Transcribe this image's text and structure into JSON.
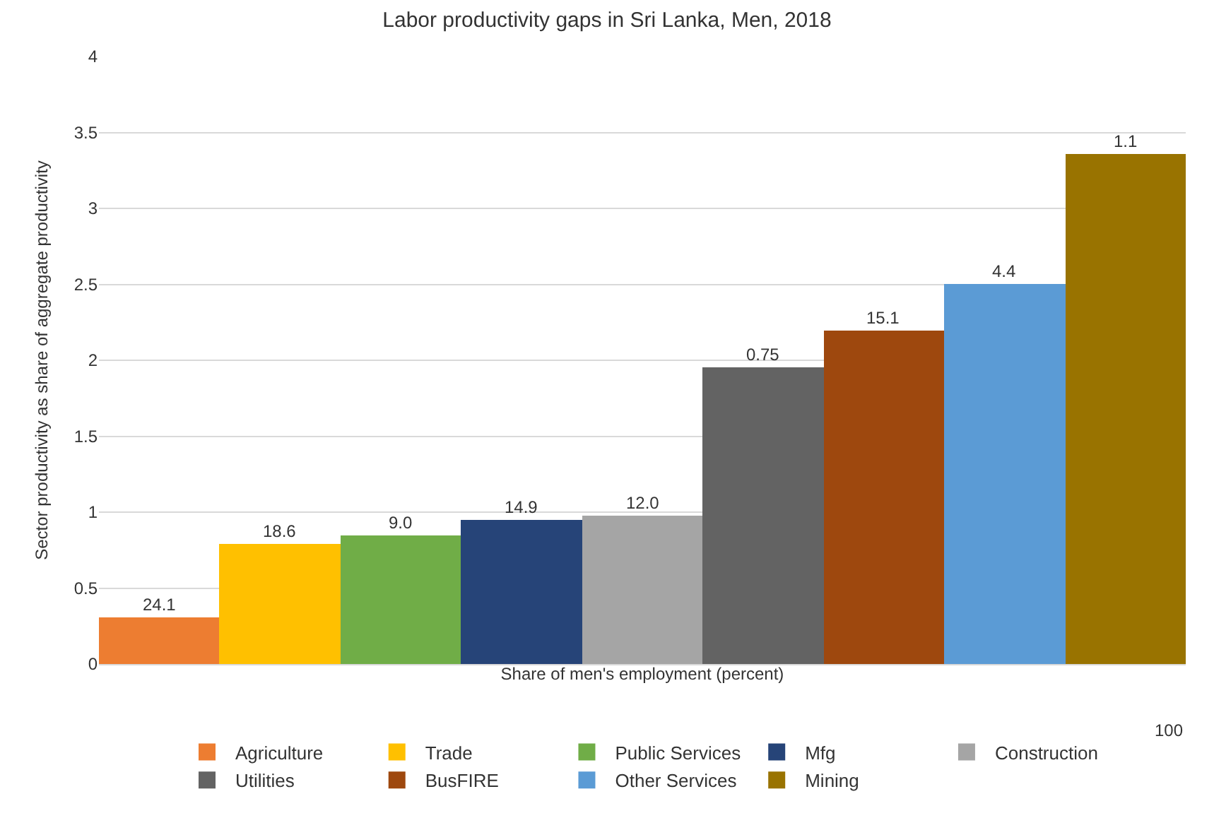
{
  "chart_data": {
    "type": "bar",
    "title": "Labor productivity gaps in Sri Lanka, Men, 2018",
    "xlabel": "Share of men's employment (percent)",
    "ylabel": "Sector productivity as share of aggregate productivity",
    "categories": [
      null,
      null,
      null,
      null,
      null,
      null,
      null,
      null,
      null
    ],
    "ylim": [
      0,
      4
    ],
    "yticks": [
      0,
      0.5,
      1,
      1.5,
      2,
      2.5,
      3,
      3.5,
      4
    ],
    "grid": "y",
    "legend": "bottom",
    "tick_labels": "y",
    "series": [
      {
        "name": "Agriculture",
        "color": "#ed7d31",
        "values": [
          0.31,
          null,
          null,
          null,
          null,
          null,
          null,
          null,
          null
        ]
      },
      {
        "name": "Trade",
        "color": "#ffc000",
        "values": [
          null,
          0.79,
          null,
          null,
          null,
          null,
          null,
          null,
          null
        ]
      },
      {
        "name": "Public Services",
        "color": "#70ad47",
        "values": [
          null,
          null,
          0.85,
          null,
          null,
          null,
          null,
          null,
          null
        ]
      },
      {
        "name": "Mfg",
        "color": "#264478",
        "values": [
          null,
          null,
          null,
          0.95,
          null,
          null,
          null,
          null,
          null
        ]
      },
      {
        "name": "Construction",
        "color": "#a5a5a5",
        "values": [
          null,
          null,
          null,
          null,
          0.98,
          null,
          null,
          null,
          null
        ]
      },
      {
        "name": "Utilities",
        "color": "#636363",
        "values": [
          null,
          null,
          null,
          null,
          null,
          1.95,
          null,
          null,
          null
        ]
      },
      {
        "name": "BusFIRE",
        "color": "#9e480e",
        "values": [
          null,
          null,
          null,
          null,
          null,
          null,
          2.2,
          null,
          null
        ]
      },
      {
        "name": "Other Services",
        "color": "#5b9bd5",
        "values": [
          null,
          null,
          null,
          null,
          null,
          null,
          null,
          2.5,
          null
        ]
      },
      {
        "name": "Mining",
        "color": "#997300",
        "values": [
          null,
          null,
          null,
          null,
          null,
          null,
          null,
          null,
          3.36
        ]
      }
    ],
    "annotations": [
      {
        "text": "24.1",
        "y": 0.31
      },
      {
        "text": "18.6",
        "y": 0.79
      },
      {
        "text": "9.0",
        "y": 0.85
      },
      {
        "text": "14.9",
        "y": 0.95
      },
      {
        "text": "12.0",
        "y": 0.98
      },
      {
        "text": "0.75",
        "y": 1.95
      },
      {
        "text": "15.1",
        "y": 2.2
      },
      {
        "text": "4.4",
        "y": 2.5
      },
      {
        "text": "1.1",
        "y": 3.36
      },
      "100"
    ]
  }
}
